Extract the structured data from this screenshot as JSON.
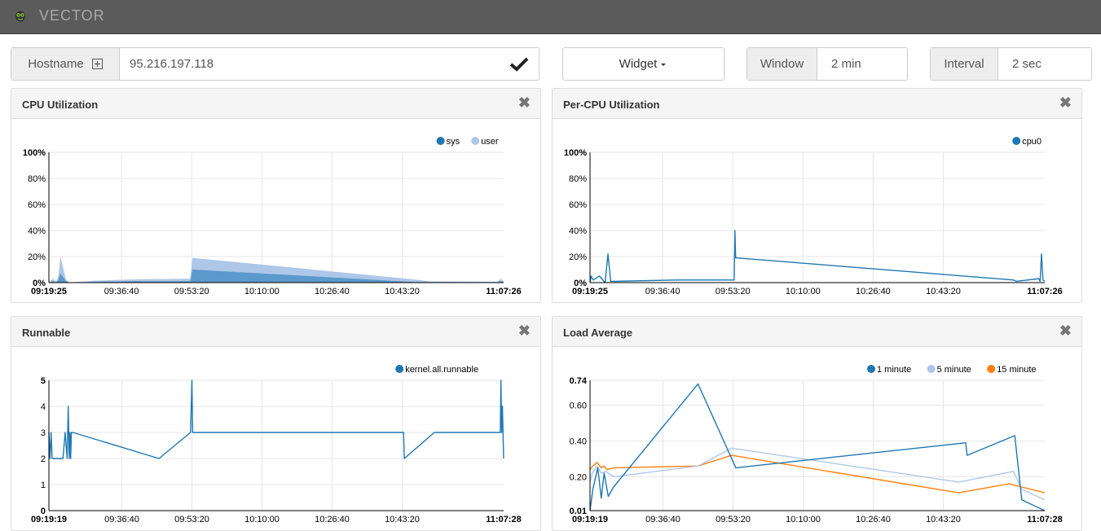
{
  "app": {
    "title": "VECTOR"
  },
  "toolbar": {
    "hostname_label": "Hostname",
    "hostname_value": "95.216.197.118",
    "widget_label": "Widget",
    "window_label": "Window",
    "window_value": "2 min",
    "interval_label": "Interval",
    "interval_value": "2 sec"
  },
  "colors": {
    "primary": "#1f77b4",
    "light": "#aec7e8",
    "orange": "#ff7f0e",
    "navbar": "#5b5b5b"
  },
  "panels": [
    {
      "title": "CPU Utilization",
      "close_icon": "close-icon"
    },
    {
      "title": "Per-CPU Utilization",
      "close_icon": "close-icon"
    },
    {
      "title": "Runnable",
      "close_icon": "close-icon"
    },
    {
      "title": "Load Average",
      "close_icon": "close-icon"
    }
  ],
  "chart_data": [
    {
      "type": "area",
      "title": "CPU Utilization",
      "y_ticks": [
        "0%",
        "20%",
        "40%",
        "60%",
        "80%",
        "100%"
      ],
      "ylim": [
        0,
        100
      ],
      "x_ticks": [
        "09:19:25",
        "09:36:40",
        "09:53:20",
        "10:10:00",
        "10:26:40",
        "10:43:20",
        "11:07:26"
      ],
      "x_range": [
        "09:19:25",
        "11:07:26"
      ],
      "stacked": true,
      "grid": true,
      "legend": "top-right",
      "series": [
        {
          "name": "sys",
          "color": "#1f77b4",
          "x": [
            "09:19:25",
            "09:20:20",
            "09:21:10",
            "09:21:40",
            "09:22:10",
            "09:23:30",
            "09:24:20",
            "09:30:00",
            "09:40:00",
            "09:53:00",
            "09:53:30",
            "10:46:00",
            "11:06:00",
            "11:06:40",
            "11:07:26"
          ],
          "values": [
            0,
            1,
            0,
            2,
            7,
            1,
            0,
            0.5,
            1,
            1,
            10,
            0.5,
            0.2,
            1,
            0.5
          ]
        },
        {
          "name": "user",
          "color": "#aec7e8",
          "x": [
            "09:19:25",
            "09:20:20",
            "09:21:10",
            "09:21:40",
            "09:22:10",
            "09:23:30",
            "09:24:20",
            "09:30:00",
            "09:40:00",
            "09:53:00",
            "09:53:30",
            "10:46:00",
            "10:50:00",
            "11:06:00",
            "11:06:40",
            "11:07:26"
          ],
          "values": [
            0,
            2,
            1,
            3,
            13,
            1,
            0,
            1,
            1.5,
            2,
            9,
            2,
            0.5,
            0.5,
            2,
            0.5
          ]
        }
      ]
    },
    {
      "type": "line",
      "title": "Per-CPU Utilization",
      "y_ticks": [
        "0%",
        "20%",
        "40%",
        "60%",
        "80%",
        "100%"
      ],
      "ylim": [
        0,
        100
      ],
      "x_ticks": [
        "09:19:25",
        "09:36:40",
        "09:53:20",
        "10:10:00",
        "10:26:40",
        "10:43:20",
        "11:07:26"
      ],
      "x_range": [
        "09:19:25",
        "11:07:26"
      ],
      "grid": true,
      "legend": "top-right",
      "series": [
        {
          "name": "cpu0",
          "color": "#1f77b4",
          "x": [
            "09:19:25",
            "09:19:40",
            "09:20:10",
            "09:21:40",
            "09:23:00",
            "09:23:40",
            "09:24:20",
            "09:25:30",
            "09:40:00",
            "09:53:20",
            "09:53:40",
            "09:53:50",
            "09:54:00",
            "11:00:00",
            "11:00:40",
            "11:06:00",
            "11:06:20",
            "11:06:40",
            "11:07:00",
            "11:07:26"
          ],
          "values": [
            0,
            5,
            2,
            5,
            0,
            22,
            1,
            1,
            2,
            2,
            2,
            40,
            19,
            2,
            1,
            3,
            1,
            22,
            2,
            1
          ]
        }
      ]
    },
    {
      "type": "line",
      "title": "Runnable",
      "y_ticks": [
        "0",
        "1",
        "2",
        "3",
        "4",
        "5"
      ],
      "ylim": [
        0,
        5
      ],
      "x_ticks": [
        "09:19:19",
        "09:36:40",
        "09:53:20",
        "10:10:00",
        "10:26:40",
        "10:43:20",
        "11:07:28"
      ],
      "x_range": [
        "09:19:19",
        "11:07:28"
      ],
      "grid": true,
      "legend": "top-right",
      "series": [
        {
          "name": "kernel.all.runnable",
          "color": "#1f77b4",
          "x": [
            "09:19:19",
            "09:19:35",
            "09:19:50",
            "09:20:05",
            "09:22:40",
            "09:23:10",
            "09:23:40",
            "09:23:55",
            "09:24:10",
            "09:24:20",
            "09:24:30",
            "09:24:40",
            "09:25:00",
            "09:45:30",
            "09:53:00",
            "09:53:20",
            "09:53:30",
            "10:43:40",
            "10:43:50",
            "10:51:00",
            "10:52:00",
            "11:06:40",
            "11:06:50",
            "11:07:00",
            "11:07:10",
            "11:07:28"
          ],
          "values": [
            3,
            2,
            3,
            2,
            2,
            3,
            2,
            4,
            2,
            3,
            2,
            3,
            3,
            2,
            3,
            5,
            3,
            3,
            2,
            3,
            3,
            3,
            5,
            3,
            4,
            2
          ]
        }
      ]
    },
    {
      "type": "line",
      "title": "Load Average",
      "y_ticks": [
        "0.01",
        "0.20",
        "0.40",
        "0.60",
        "0.74"
      ],
      "ylim": [
        0.01,
        0.74
      ],
      "x_ticks": [
        "09:19:19",
        "09:36:40",
        "09:53:20",
        "10:10:00",
        "10:26:40",
        "10:43:20",
        "11:07:28"
      ],
      "x_range": [
        "09:19:19",
        "11:07:28"
      ],
      "grid": true,
      "legend": "top-right",
      "series": [
        {
          "name": "1 minute",
          "color": "#1f77b4",
          "x": [
            "09:19:19",
            "09:20:00",
            "09:21:10",
            "09:22:00",
            "09:22:40",
            "09:23:40",
            "09:24:50",
            "09:45:00",
            "09:54:00",
            "10:48:40",
            "10:49:00",
            "11:00:20",
            "11:02:00",
            "11:07:28"
          ],
          "values": [
            0.01,
            0.13,
            0.25,
            0.08,
            0.22,
            0.09,
            0.14,
            0.72,
            0.25,
            0.39,
            0.32,
            0.43,
            0.07,
            0.01
          ]
        },
        {
          "name": "5 minute",
          "color": "#aec7e8",
          "x": [
            "09:19:19",
            "09:19:50",
            "09:21:00",
            "09:22:00",
            "09:23:00",
            "09:25:00",
            "09:45:00",
            "09:53:00",
            "10:47:00",
            "11:00:00",
            "11:02:00",
            "11:07:28"
          ],
          "values": [
            0.17,
            0.22,
            0.26,
            0.22,
            0.23,
            0.2,
            0.26,
            0.36,
            0.17,
            0.23,
            0.13,
            0.07
          ]
        },
        {
          "name": "15 minute",
          "color": "#ff7f0e",
          "x": [
            "09:19:19",
            "09:20:00",
            "09:21:00",
            "09:22:00",
            "09:22:40",
            "09:23:20",
            "09:25:00",
            "09:45:00",
            "09:53:00",
            "10:47:00",
            "10:59:00",
            "11:07:28"
          ],
          "values": [
            0.24,
            0.26,
            0.28,
            0.25,
            0.26,
            0.24,
            0.25,
            0.26,
            0.32,
            0.11,
            0.16,
            0.11
          ]
        }
      ]
    }
  ]
}
